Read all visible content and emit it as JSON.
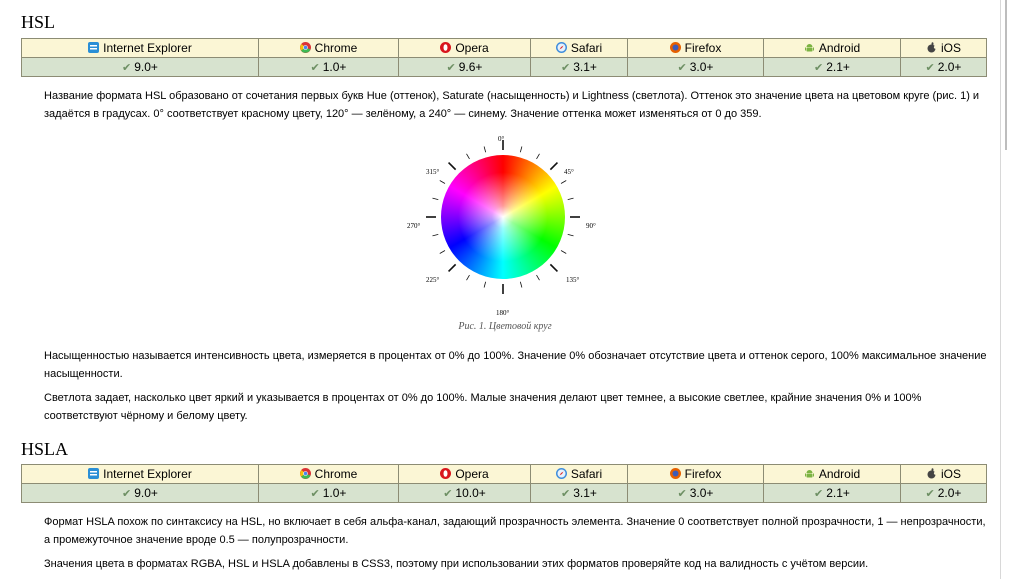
{
  "hsl": {
    "title": "HSL",
    "browsers": [
      {
        "name": "Internet Explorer",
        "icon": "ie-icon",
        "version": "9.0+"
      },
      {
        "name": "Chrome",
        "icon": "chrome-icon",
        "version": "1.0+"
      },
      {
        "name": "Opera",
        "icon": "opera-icon",
        "version": "9.6+"
      },
      {
        "name": "Safari",
        "icon": "safari-icon",
        "version": "3.1+"
      },
      {
        "name": "Firefox",
        "icon": "firefox-icon",
        "version": "3.0+"
      },
      {
        "name": "Android",
        "icon": "android-icon",
        "version": "2.1+"
      },
      {
        "name": "iOS",
        "icon": "apple-icon",
        "version": "2.0+"
      }
    ],
    "para1": "Название формата HSL образовано от сочетания первых букв Hue (оттенок), Saturate (насыщенность) и Lightness (светлота). Оттенок это значение цвета на цветовом круге (рис. 1) и задаётся в градусах. 0° соответствует красному цвету, 120° — зелёному, а 240° — синему. Значение оттенка может изменяться от 0 до 359.",
    "figure": {
      "labels": {
        "deg0": "0°",
        "deg45": "45°",
        "deg90": "90°",
        "deg135": "135°",
        "deg180": "180°",
        "deg225": "225°",
        "deg270": "270°",
        "deg315": "315°"
      },
      "caption": "Рис. 1. Цветовой круг"
    },
    "para2": "Насыщенностью называется интенсивность цвета, измеряется в процентах от 0% до 100%. Значение 0% обозначает отсутствие цвета и оттенок серого, 100% максимальное значение насыщенности.",
    "para3": "Светлота задает, насколько цвет яркий и указывается в процентах от 0% до 100%. Малые значения делают цвет темнее, а высокие светлее, крайние значения 0% и 100% соответствуют чёрному и белому цвету."
  },
  "hsla": {
    "title": "HSLA",
    "browsers": [
      {
        "name": "Internet Explorer",
        "icon": "ie-icon",
        "version": "9.0+"
      },
      {
        "name": "Chrome",
        "icon": "chrome-icon",
        "version": "1.0+"
      },
      {
        "name": "Opera",
        "icon": "opera-icon",
        "version": "10.0+"
      },
      {
        "name": "Safari",
        "icon": "safari-icon",
        "version": "3.1+"
      },
      {
        "name": "Firefox",
        "icon": "firefox-icon",
        "version": "3.0+"
      },
      {
        "name": "Android",
        "icon": "android-icon",
        "version": "2.1+"
      },
      {
        "name": "iOS",
        "icon": "apple-icon",
        "version": "2.0+"
      }
    ],
    "para1": "Формат HSLA похож по синтаксису на HSL, но включает в себя альфа-канал, задающий прозрачность элемента. Значение 0 соответствует полной прозрачности, 1 — непрозрачности, а промежуточное значение вроде 0.5 — полупрозрачности.",
    "para2": "Значения цвета в форматах RGBA, HSL и HSLA добавлены в CSS3, поэтому при использовании этих форматов проверяйте код на валидность с учётом версии."
  },
  "colors": {
    "header_bg": "#fbf6d5",
    "version_bg": "#d7e3cf",
    "border": "#8c8c74",
    "check": "#6d8f63"
  }
}
